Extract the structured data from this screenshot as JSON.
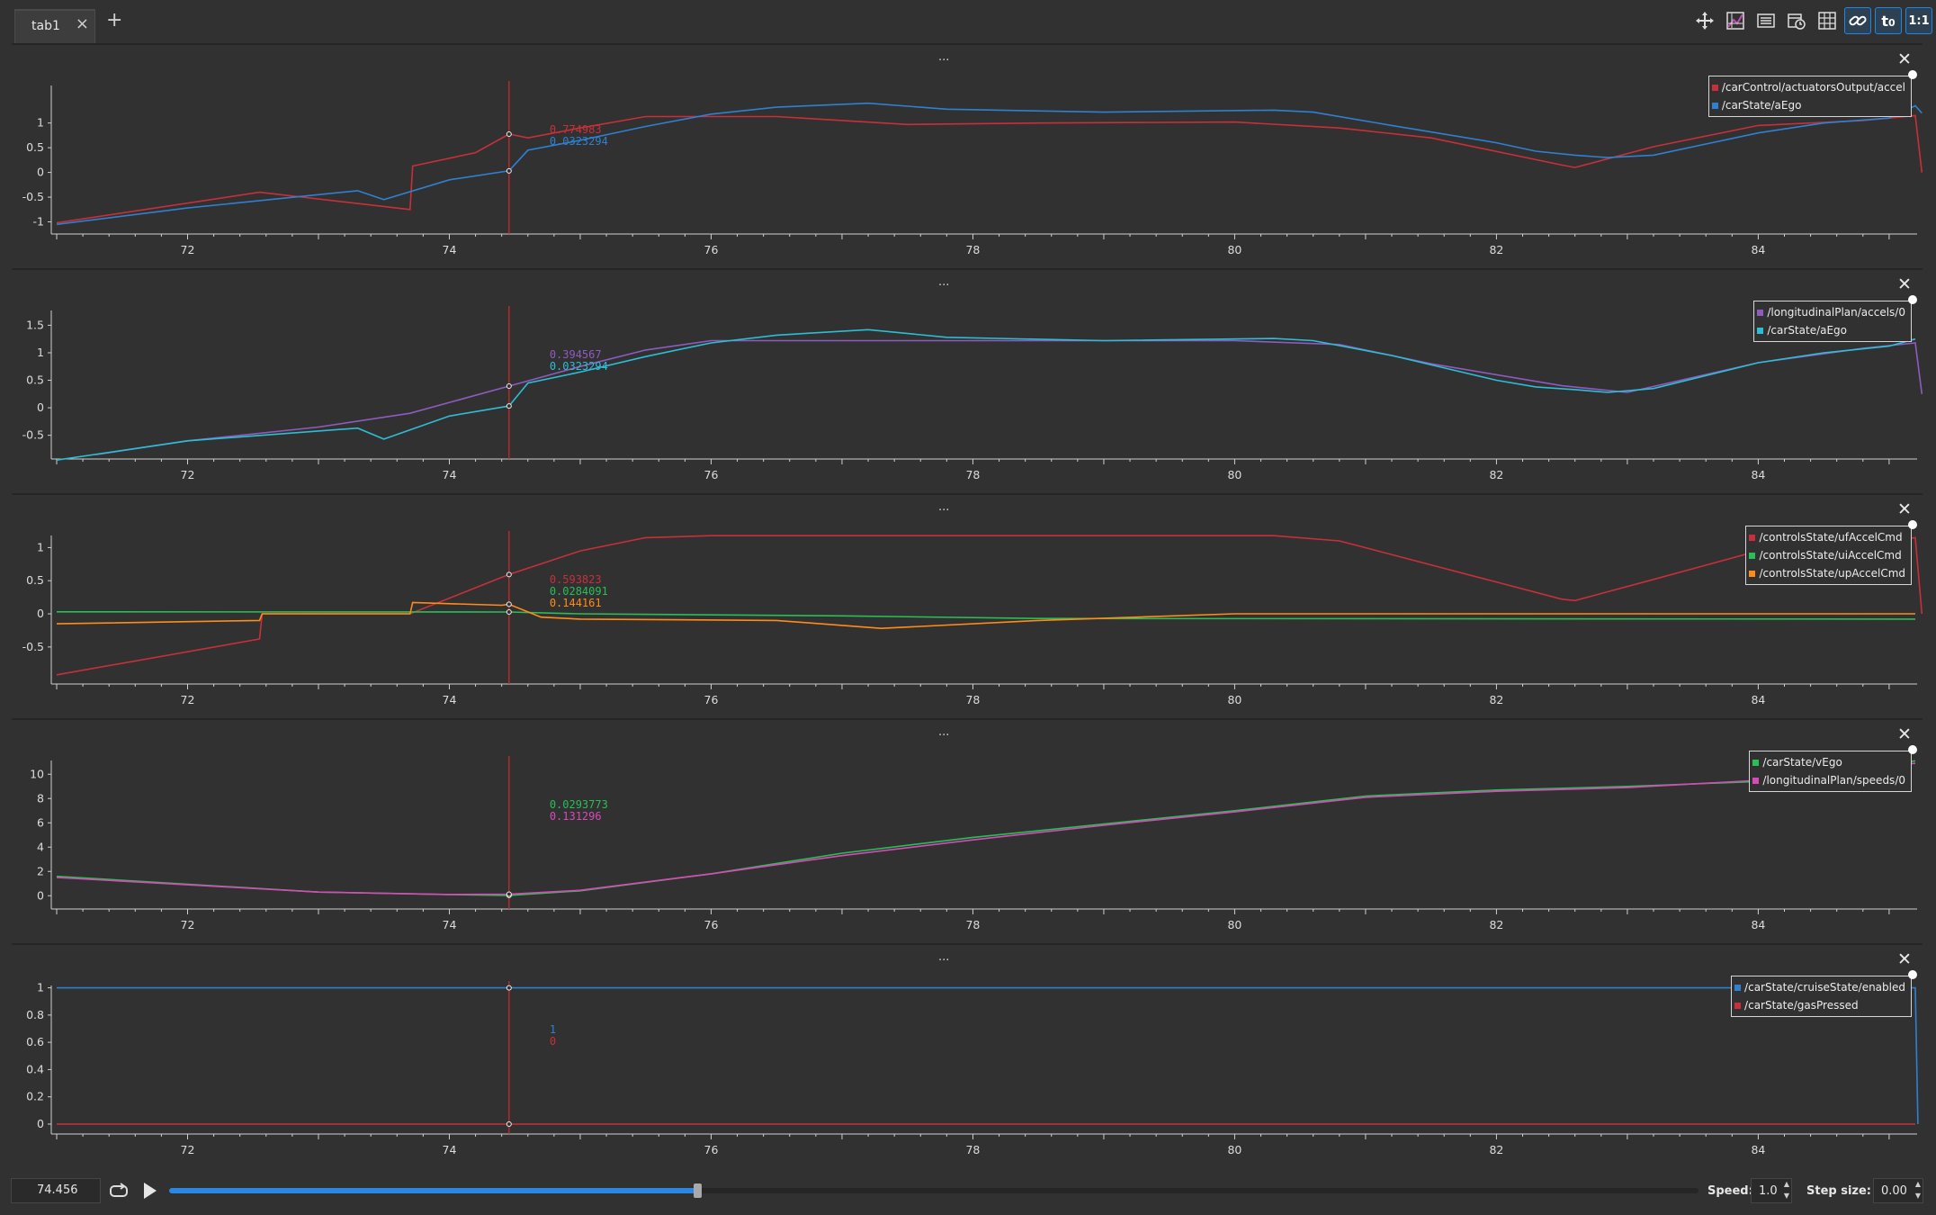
{
  "tabs": [
    {
      "label": "tab1"
    }
  ],
  "toolbar": {
    "buttons": [
      {
        "name": "move-icon",
        "glyph": "✥"
      },
      {
        "name": "chart-layout-icon",
        "glyph": ""
      },
      {
        "name": "list-icon",
        "glyph": "☰"
      },
      {
        "name": "clock-settings-icon",
        "glyph": ""
      },
      {
        "name": "grid-icon",
        "glyph": ""
      },
      {
        "name": "link-icon",
        "glyph": ""
      },
      {
        "name": "time-offset-icon",
        "glyph": "t₀"
      },
      {
        "name": "ratio-icon",
        "glyph": "1:1"
      }
    ]
  },
  "panel_menu_label": "...",
  "panel_close_label": "✕",
  "x_axis": {
    "ticks": [
      "72",
      "74",
      "76",
      "78",
      "80",
      "82",
      "84"
    ],
    "range": [
      71,
      85.2
    ]
  },
  "cursor_time": 74.456,
  "chart_data": [
    {
      "type": "line",
      "ylim": [
        -1.1,
        1.85
      ],
      "yticks": [
        "-1",
        "-0.5",
        "0",
        "0.5",
        "1"
      ],
      "series": [
        {
          "name": "/carControl/actuatorsOutput/accel",
          "color": "#c7303a",
          "points": [
            [
              71,
              -1.02
            ],
            [
              72.55,
              -0.4
            ],
            [
              73.7,
              -0.75
            ],
            [
              73.72,
              0.13
            ],
            [
              74.2,
              0.4
            ],
            [
              74.456,
              0.774983
            ],
            [
              74.6,
              0.7
            ],
            [
              75,
              0.9
            ],
            [
              75.5,
              1.13
            ],
            [
              76.5,
              1.13
            ],
            [
              77.5,
              0.97
            ],
            [
              78.5,
              1.0
            ],
            [
              80,
              1.02
            ],
            [
              80.8,
              0.9
            ],
            [
              81.5,
              0.7
            ],
            [
              82.5,
              0.15
            ],
            [
              82.6,
              0.1
            ],
            [
              83.2,
              0.52
            ],
            [
              84,
              0.95
            ],
            [
              84.8,
              1.05
            ],
            [
              85.2,
              1.15
            ],
            [
              85.25,
              0.0
            ]
          ],
          "cursor_value": "0.774983"
        },
        {
          "name": "/carState/aEgo",
          "color": "#2f80d0",
          "points": [
            [
              71,
              -1.05
            ],
            [
              72,
              -0.72
            ],
            [
              73.3,
              -0.37
            ],
            [
              73.5,
              -0.55
            ],
            [
              74,
              -0.15
            ],
            [
              74.456,
              0.0323294
            ],
            [
              74.6,
              0.45
            ],
            [
              75,
              0.65
            ],
            [
              75.5,
              0.93
            ],
            [
              76,
              1.18
            ],
            [
              76.5,
              1.32
            ],
            [
              77.2,
              1.4
            ],
            [
              77.8,
              1.28
            ],
            [
              79,
              1.22
            ],
            [
              80.3,
              1.26
            ],
            [
              80.6,
              1.22
            ],
            [
              81.2,
              0.95
            ],
            [
              82,
              0.6
            ],
            [
              82.3,
              0.43
            ],
            [
              82.6,
              0.35
            ],
            [
              82.85,
              0.3
            ],
            [
              83.2,
              0.35
            ],
            [
              84,
              0.8
            ],
            [
              84.5,
              1.0
            ],
            [
              85,
              1.1
            ],
            [
              85.2,
              1.35
            ],
            [
              85.25,
              1.2
            ]
          ],
          "cursor_value": "0.0323294"
        }
      ]
    },
    {
      "type": "line",
      "ylim": [
        -0.8,
        1.85
      ],
      "yticks": [
        "-0.5",
        "0",
        "0.5",
        "1",
        "1.5"
      ],
      "series": [
        {
          "name": "/longitudinalPlan/accels/0",
          "color": "#8e5bbf",
          "points": [
            [
              71.3,
              -0.85
            ],
            [
              72,
              -0.6
            ],
            [
              73,
              -0.35
            ],
            [
              73.7,
              -0.1
            ],
            [
              74.456,
              0.394567
            ],
            [
              75,
              0.75
            ],
            [
              75.5,
              1.05
            ],
            [
              76,
              1.22
            ],
            [
              78,
              1.22
            ],
            [
              80,
              1.22
            ],
            [
              80.8,
              1.15
            ],
            [
              81.5,
              0.8
            ],
            [
              82.5,
              0.4
            ],
            [
              83,
              0.28
            ],
            [
              84,
              0.82
            ],
            [
              84.8,
              1.08
            ],
            [
              85.2,
              1.18
            ],
            [
              85.25,
              0.25
            ]
          ],
          "cursor_value": "0.394567"
        },
        {
          "name": "/carState/aEgo",
          "color": "#2dbdd4",
          "points": [
            [
              71,
              -0.95
            ],
            [
              72,
              -0.6
            ],
            [
              73.3,
              -0.37
            ],
            [
              73.5,
              -0.57
            ],
            [
              74,
              -0.15
            ],
            [
              74.456,
              0.0323294
            ],
            [
              74.6,
              0.45
            ],
            [
              75,
              0.65
            ],
            [
              75.5,
              0.93
            ],
            [
              76,
              1.18
            ],
            [
              76.5,
              1.32
            ],
            [
              77.2,
              1.42
            ],
            [
              77.8,
              1.28
            ],
            [
              79,
              1.22
            ],
            [
              80.3,
              1.26
            ],
            [
              80.6,
              1.22
            ],
            [
              81.2,
              0.95
            ],
            [
              82,
              0.5
            ],
            [
              82.3,
              0.38
            ],
            [
              82.6,
              0.33
            ],
            [
              82.85,
              0.28
            ],
            [
              83.2,
              0.35
            ],
            [
              84,
              0.82
            ],
            [
              84.5,
              1.0
            ],
            [
              85,
              1.12
            ],
            [
              85.2,
              1.25
            ]
          ],
          "cursor_value": "0.0323294"
        }
      ]
    },
    {
      "type": "line",
      "ylim": [
        -0.95,
        1.25
      ],
      "yticks": [
        "-0.5",
        "0",
        "0.5",
        "1"
      ],
      "series": [
        {
          "name": "/controlsState/ufAccelCmd",
          "color": "#c7303a",
          "points": [
            [
              71,
              -0.92
            ],
            [
              72.55,
              -0.38
            ],
            [
              72.57,
              0.0
            ],
            [
              73.7,
              0.0
            ],
            [
              74.456,
              0.593823
            ],
            [
              75,
              0.95
            ],
            [
              75.5,
              1.15
            ],
            [
              76,
              1.18
            ],
            [
              78,
              1.18
            ],
            [
              80.3,
              1.18
            ],
            [
              80.8,
              1.1
            ],
            [
              82.5,
              0.22
            ],
            [
              82.6,
              0.2
            ],
            [
              83.2,
              0.52
            ],
            [
              84,
              0.95
            ],
            [
              84.8,
              1.05
            ],
            [
              85.2,
              1.15
            ],
            [
              85.25,
              0.0
            ]
          ],
          "cursor_value": "0.593823"
        },
        {
          "name": "/controlsState/uiAccelCmd",
          "color": "#2bbd56",
          "points": [
            [
              71,
              0.03
            ],
            [
              74.456,
              0.0284091
            ],
            [
              75,
              0.0
            ],
            [
              77,
              -0.03
            ],
            [
              78.5,
              -0.07
            ],
            [
              85.2,
              -0.08
            ]
          ],
          "cursor_value": "0.0284091"
        },
        {
          "name": "/controlsState/upAccelCmd",
          "color": "#ff8c1a",
          "points": [
            [
              71,
              -0.15
            ],
            [
              72.55,
              -0.1
            ],
            [
              72.57,
              0.0
            ],
            [
              73.7,
              0.0
            ],
            [
              73.72,
              0.17
            ],
            [
              74.4,
              0.13
            ],
            [
              74.456,
              0.144161
            ],
            [
              74.7,
              -0.05
            ],
            [
              75,
              -0.08
            ],
            [
              76.5,
              -0.1
            ],
            [
              77.3,
              -0.22
            ],
            [
              78.5,
              -0.1
            ],
            [
              80,
              0.0
            ],
            [
              85.2,
              0.0
            ]
          ],
          "cursor_value": "0.144161"
        }
      ]
    },
    {
      "type": "line",
      "ylim": [
        -0.5,
        11.5
      ],
      "yticks": [
        "0",
        "2",
        "4",
        "6",
        "8",
        "10"
      ],
      "series": [
        {
          "name": "/carState/vEgo",
          "color": "#2bbd56",
          "points": [
            [
              71,
              1.6
            ],
            [
              73,
              0.3
            ],
            [
              74,
              0.1
            ],
            [
              74.456,
              0.0293773
            ],
            [
              75,
              0.4
            ],
            [
              76,
              1.8
            ],
            [
              77,
              3.5
            ],
            [
              78,
              4.8
            ],
            [
              79,
              5.9
            ],
            [
              80,
              7.0
            ],
            [
              81,
              8.2
            ],
            [
              82,
              8.7
            ],
            [
              83,
              9.0
            ],
            [
              84,
              9.4
            ],
            [
              85.2,
              11.1
            ]
          ],
          "cursor_value": "0.0293773"
        },
        {
          "name": "/longitudinalPlan/speeds/0",
          "color": "#d64bb8",
          "points": [
            [
              71,
              1.5
            ],
            [
              73,
              0.3
            ],
            [
              74,
              0.1
            ],
            [
              74.456,
              0.131296
            ],
            [
              75,
              0.45
            ],
            [
              76,
              1.8
            ],
            [
              77,
              3.3
            ],
            [
              78,
              4.6
            ],
            [
              79,
              5.8
            ],
            [
              80,
              6.9
            ],
            [
              81,
              8.1
            ],
            [
              82,
              8.6
            ],
            [
              83,
              8.9
            ],
            [
              84,
              9.5
            ],
            [
              85.2,
              10.9
            ]
          ],
          "cursor_value": "0.131296"
        }
      ]
    },
    {
      "type": "line",
      "ylim": [
        -0.02,
        1.05
      ],
      "yticks": [
        "0",
        "0.2",
        "0.4",
        "0.6",
        "0.8",
        "1"
      ],
      "series": [
        {
          "name": "/carState/cruiseState/enabled",
          "color": "#2f80d0",
          "points": [
            [
              71,
              1
            ],
            [
              85.2,
              1
            ],
            [
              85.22,
              0
            ]
          ],
          "cursor_value": "1"
        },
        {
          "name": "/carState/gasPressed",
          "color": "#c7303a",
          "points": [
            [
              71,
              0
            ],
            [
              85.2,
              0
            ]
          ],
          "cursor_value": "0"
        }
      ]
    }
  ],
  "playback": {
    "time_value": "74.456",
    "progress": 0.345,
    "speed_label": "Speed:",
    "speed_value": "1.0",
    "step_label": "Step size:",
    "step_value": "0.00"
  }
}
